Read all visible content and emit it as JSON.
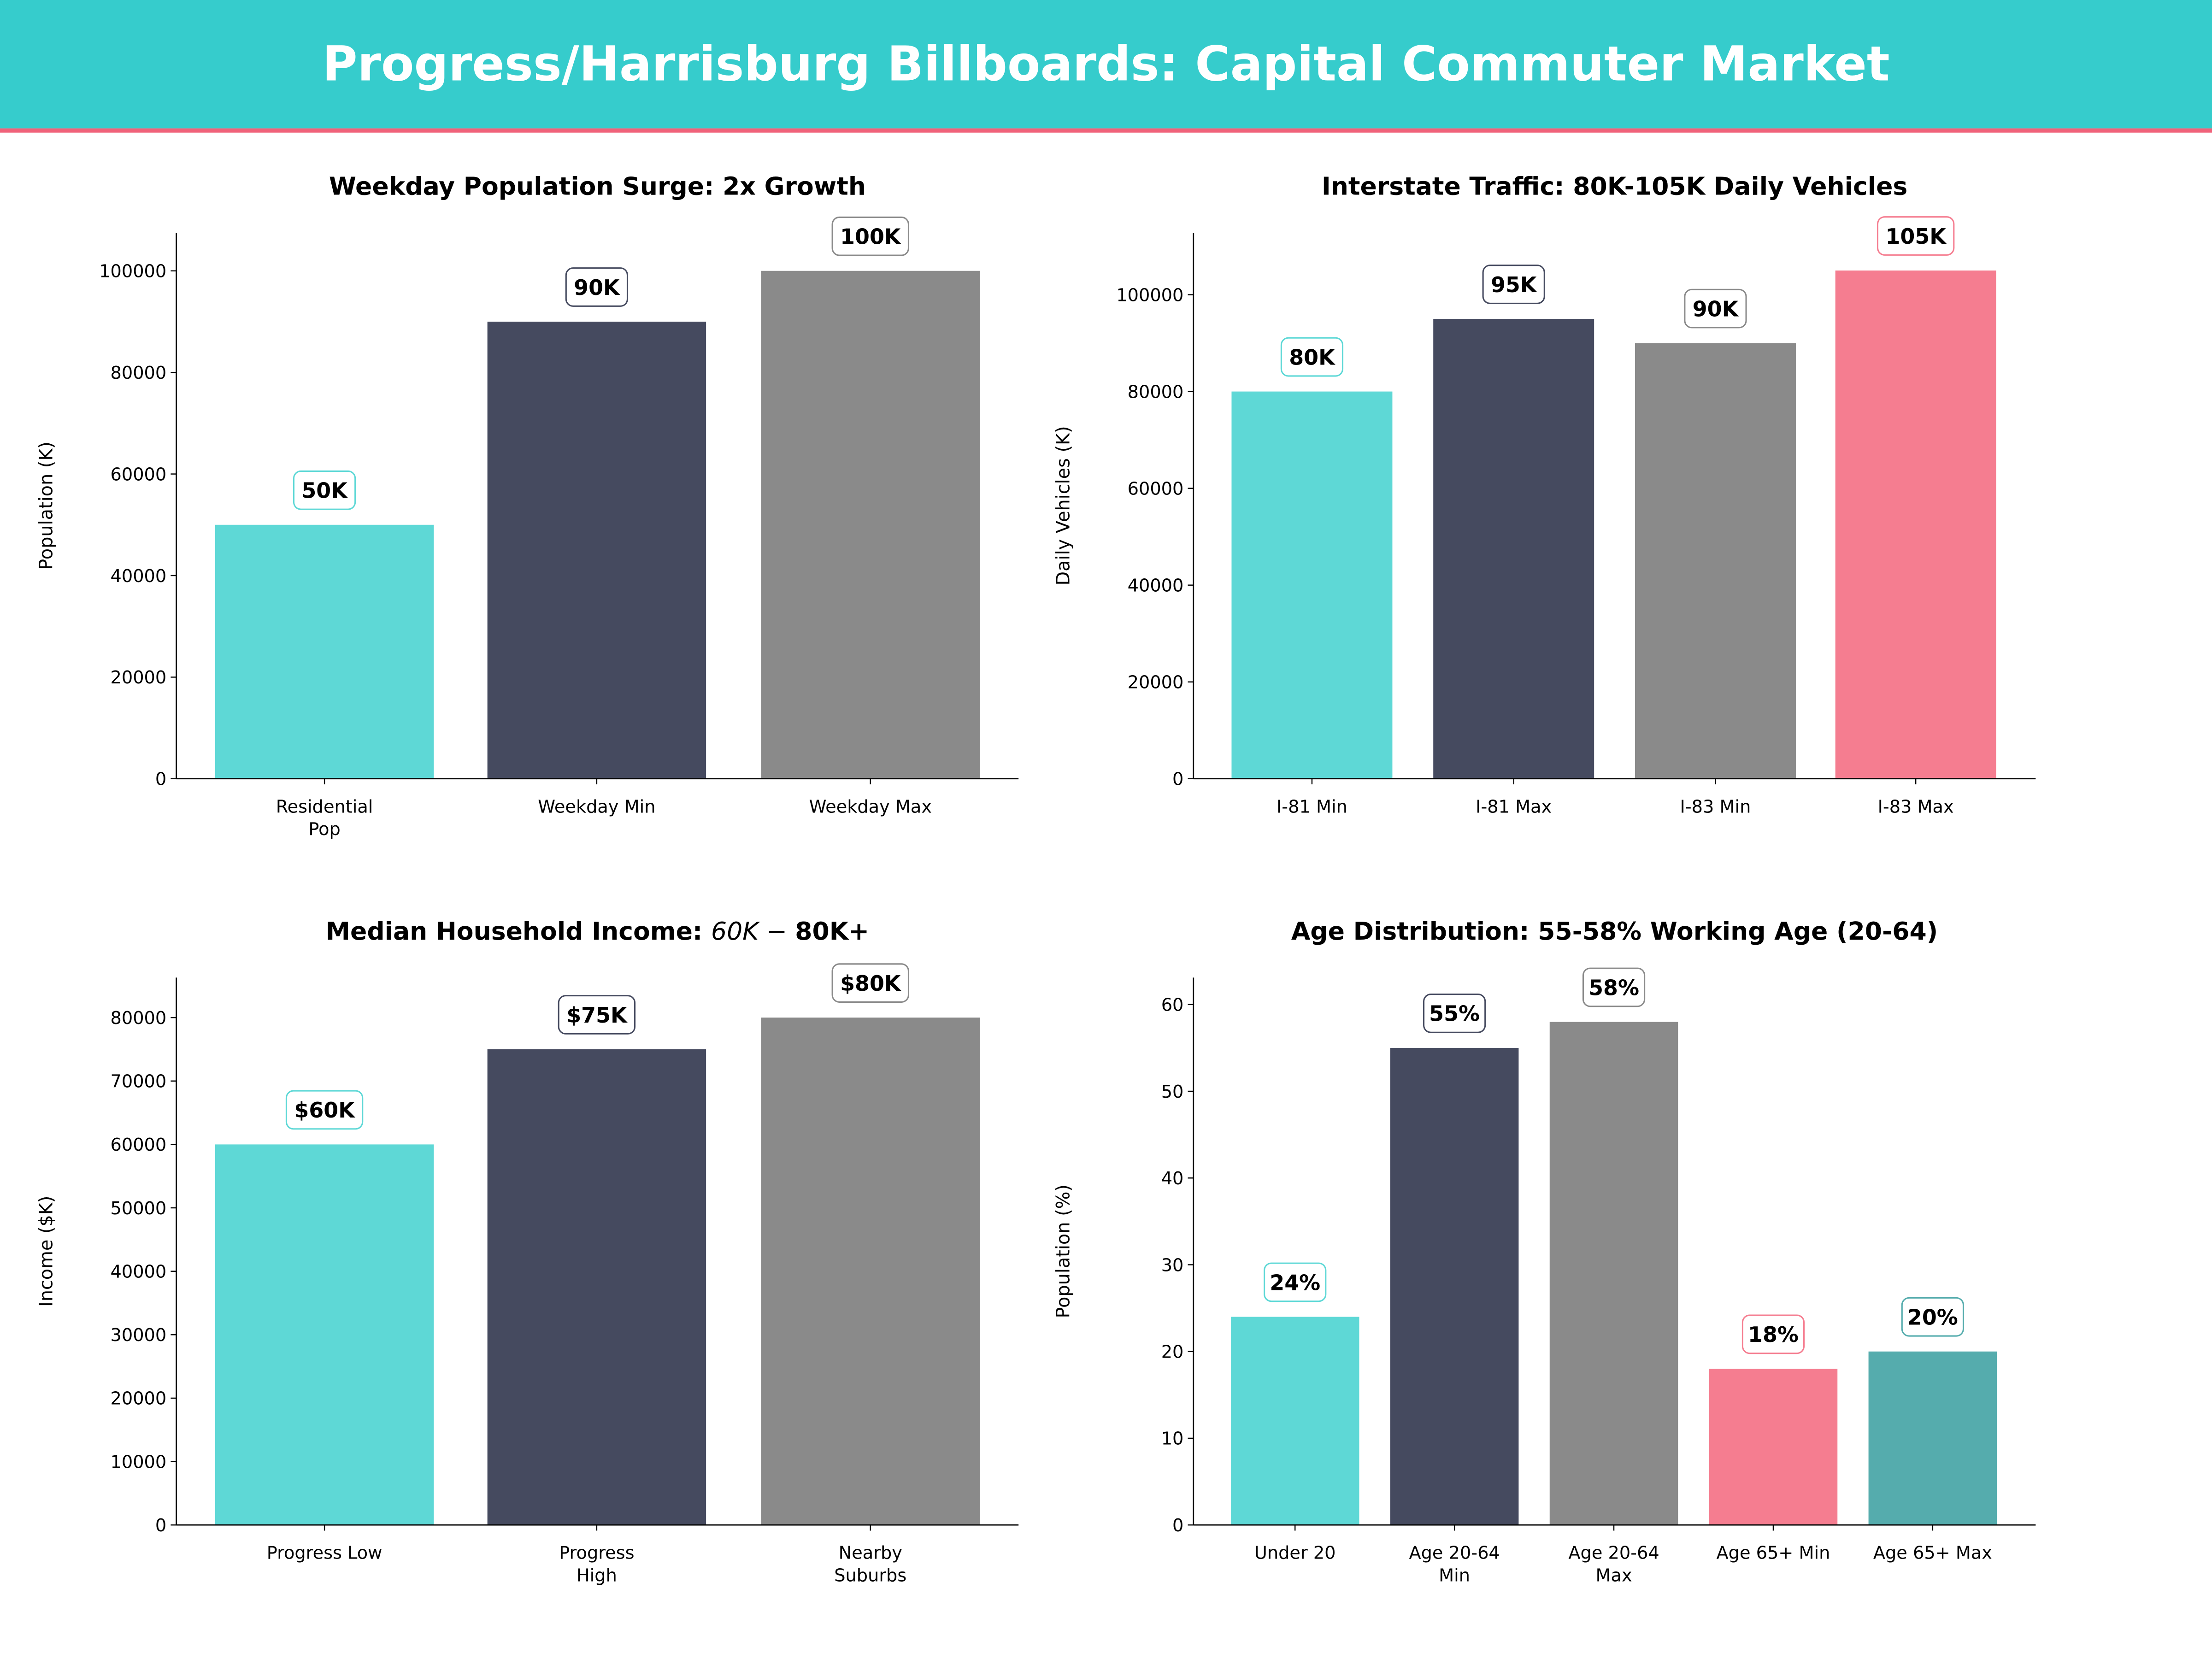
{
  "header": {
    "title": "Progress/Harrisburg Billboards: Capital Commuter Market",
    "background_color": "#36CCCC",
    "accent_line_color": "#F0627A"
  },
  "chart_data": [
    {
      "type": "bar",
      "title": "Weekday Population Surge: 2x Growth",
      "xlabel": "",
      "ylabel": "Population (K)",
      "categories": [
        "Residential\nPop",
        "Weekday Min",
        "Weekday Max"
      ],
      "values": [
        50000,
        90000,
        100000
      ],
      "data_labels": [
        "50K",
        "90K",
        "100K"
      ],
      "colors": [
        "#5ED8D6",
        "#454A5F",
        "#8A8A8A"
      ],
      "ylim": [
        0,
        107500
      ],
      "yticks": [
        0,
        20000,
        40000,
        60000,
        80000,
        100000
      ],
      "grid": false
    },
    {
      "type": "bar",
      "title": "Interstate Traffic: 80K-105K Daily Vehicles",
      "xlabel": "",
      "ylabel": "Daily Vehicles (K)",
      "categories": [
        "I-81 Min",
        "I-81 Max",
        "I-83 Min",
        "I-83 Max"
      ],
      "values": [
        80000,
        95000,
        90000,
        105000
      ],
      "data_labels": [
        "80K",
        "95K",
        "90K",
        "105K"
      ],
      "colors": [
        "#5ED8D6",
        "#454A5F",
        "#8A8A8A",
        "#F57D90"
      ],
      "ylim": [
        0,
        112800
      ],
      "yticks": [
        0,
        20000,
        40000,
        60000,
        80000,
        100000
      ],
      "grid": false
    },
    {
      "type": "bar",
      "title": "Median Household Income: 60K − 80K+",
      "title_parts": [
        "Median Household Income: ",
        "60K − ",
        "80K+"
      ],
      "xlabel": "",
      "ylabel": "Income ($K)",
      "categories": [
        "Progress Low",
        "Progress\nHigh",
        "Nearby\nSuburbs"
      ],
      "values": [
        60000,
        75000,
        80000
      ],
      "data_labels": [
        "$60K",
        "$75K",
        "$80K"
      ],
      "colors": [
        "#5ED8D6",
        "#454A5F",
        "#8A8A8A"
      ],
      "ylim": [
        0,
        86300
      ],
      "yticks": [
        0,
        10000,
        20000,
        30000,
        40000,
        50000,
        60000,
        70000,
        80000
      ],
      "grid": false
    },
    {
      "type": "bar",
      "title": "Age Distribution: 55-58% Working Age (20-64)",
      "xlabel": "",
      "ylabel": "Population (%)",
      "categories": [
        "Under 20",
        "Age 20-64\nMin",
        "Age 20-64\nMax",
        "Age 65+ Min",
        "Age 65+ Max"
      ],
      "values": [
        24,
        55,
        58,
        18,
        20
      ],
      "data_labels": [
        "24%",
        "55%",
        "58%",
        "18%",
        "20%"
      ],
      "colors": [
        "#5ED8D6",
        "#454A5F",
        "#8A8A8A",
        "#F57D90",
        "#55ACAD"
      ],
      "ylim": [
        0,
        63.1
      ],
      "yticks": [
        0,
        10,
        20,
        30,
        40,
        50,
        60
      ],
      "grid": false
    }
  ]
}
